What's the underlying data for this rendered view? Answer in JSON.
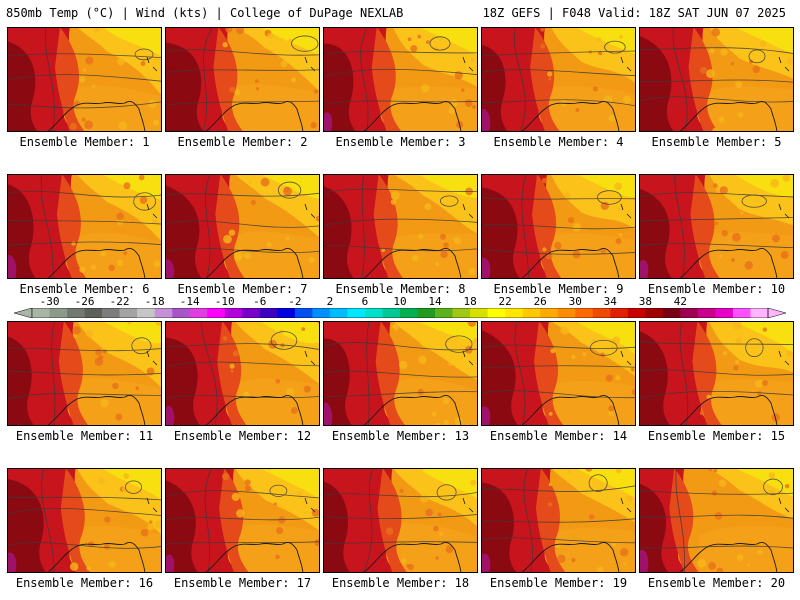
{
  "header": {
    "left": "850mb Temp (°C) | Wind (kts) | College of DuPage NEXLAB",
    "right": "18Z GEFS | F048 Valid: 18Z SAT JUN 07 2025"
  },
  "members": [
    "Ensemble Member: 1",
    "Ensemble Member: 2",
    "Ensemble Member: 3",
    "Ensemble Member: 4",
    "Ensemble Member: 5",
    "Ensemble Member: 6",
    "Ensemble Member: 7",
    "Ensemble Member: 8",
    "Ensemble Member: 9",
    "Ensemble Member: 10",
    "Ensemble Member: 11",
    "Ensemble Member: 12",
    "Ensemble Member: 13",
    "Ensemble Member: 14",
    "Ensemble Member: 15",
    "Ensemble Member: 16",
    "Ensemble Member: 17",
    "Ensemble Member: 18",
    "Ensemble Member: 19",
    "Ensemble Member: 20"
  ],
  "colorbar": {
    "labels": [
      "-30",
      "-26",
      "-22",
      "-18",
      "-14",
      "-10",
      "-6",
      "-2",
      "2",
      "6",
      "10",
      "14",
      "18",
      "22",
      "26",
      "30",
      "34",
      "38",
      "42"
    ],
    "colors": [
      "#a9b6a6",
      "#8c9a8a",
      "#727a70",
      "#5d605b",
      "#7d7d7d",
      "#a3a3a3",
      "#c6c6c6",
      "#c490d8",
      "#a855c8",
      "#e13de1",
      "#ff00ff",
      "#b400dc",
      "#7800c8",
      "#3c00c0",
      "#0000e0",
      "#0050f0",
      "#0090ff",
      "#00bcff",
      "#00e6ff",
      "#00e0c8",
      "#00c896",
      "#00b050",
      "#209a20",
      "#5cb21a",
      "#a0c814",
      "#d8e000",
      "#ffff00",
      "#ffe600",
      "#ffc800",
      "#ffaa00",
      "#ff8c00",
      "#ff6a00",
      "#f04a00",
      "#e02000",
      "#c80000",
      "#a00000",
      "#780014",
      "#a00050",
      "#c8008c",
      "#e800c8",
      "#ff50ff",
      "#ffb4ff"
    ]
  },
  "legend_colors": {
    "hot": "#8b0a12",
    "warm_red": "#c8141c",
    "orange": "#f28a10",
    "yellow": "#fde500",
    "magenta": "#a0126a"
  }
}
